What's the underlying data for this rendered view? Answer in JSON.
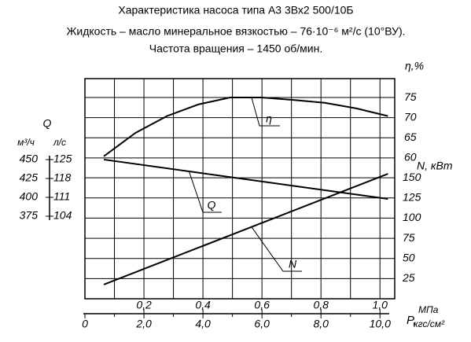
{
  "chart_data": {
    "type": "line",
    "title": "Характеристика насоса типа А3 3Вх2 500/10Б",
    "subtitle": "Жидкость – масло минеральное вязкостью – 76·10⁻⁶ м²/с (10°ВУ).",
    "subtitle2": "Частота вращения – 1450 об/мин.",
    "x_label": "P,",
    "x_unit": "кгс/см²",
    "x2_unit": "МПа",
    "y_label": "η,%",
    "y2_label": "N, кВт",
    "y3_label": "Q",
    "y3_unit": "л/с",
    "y4_unit": "м³/ч",
    "xlim": [
      0,
      10.5
    ],
    "xticks": [
      0,
      {
        "value": 2,
        "label": "2,0"
      },
      {
        "value": 4,
        "label": "4,0"
      },
      {
        "value": 6,
        "label": "6,0"
      },
      {
        "value": 8,
        "label": "8,0"
      },
      {
        "value": 10,
        "label": "10,0"
      }
    ],
    "x_minor_ticks": [
      1,
      3,
      5,
      7,
      9
    ],
    "x2lim": [
      0,
      1.05
    ],
    "x2ticks": [
      {
        "value": 0.2,
        "label": "0,2"
      },
      {
        "value": 0.4,
        "label": "0,4"
      },
      {
        "value": 0.6,
        "label": "0,6"
      },
      {
        "value": 0.8,
        "label": "0,8"
      },
      {
        "value": 1.0,
        "label": "1,0"
      }
    ],
    "ylim": [
      25,
      79.7
    ],
    "yticks": [
      60,
      65,
      70,
      75
    ],
    "y2lim": [
      0,
      273
    ],
    "y2ticks": [
      25,
      50,
      75,
      100,
      125,
      150
    ],
    "y3lim": [
      73.4,
      155
    ],
    "y3ticks": [
      104,
      111,
      118,
      125
    ],
    "y4lim": [
      265.6,
      557.3
    ],
    "y4ticks": [
      375,
      400,
      425,
      450
    ],
    "series": [
      {
        "name": "η",
        "color": "#000000",
        "axis": "y",
        "x": [
          0.64,
          1.71,
          2.78,
          3.85,
          4.92,
          5.99,
          7.06,
          8.13,
          9.2,
          10.27
        ],
        "values": [
          60.4,
          66.2,
          70.4,
          73.3,
          75,
          75,
          74.4,
          73.7,
          72.3,
          70.4
        ]
      },
      {
        "name": "Q",
        "color": "#000000",
        "axis": "y3",
        "x": [
          0.64,
          10.27
        ],
        "values": [
          125,
          110.4
        ]
      },
      {
        "name": "N",
        "color": "#000000",
        "axis": "y2",
        "x": [
          0.64,
          10.27
        ],
        "values": [
          17.6,
          155
        ]
      }
    ]
  }
}
